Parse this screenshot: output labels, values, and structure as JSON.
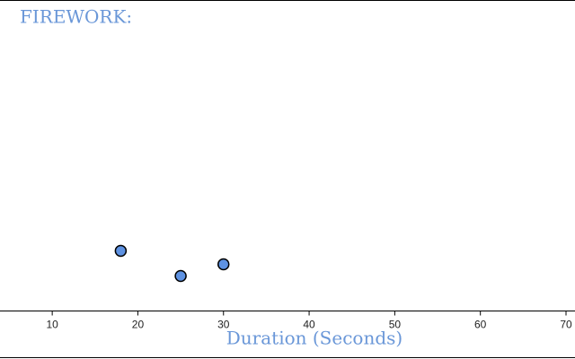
{
  "chart_data": {
    "type": "scatter",
    "title": "FIREWORK:",
    "x_label": "Duration (Seconds)",
    "x": [
      18,
      25,
      30
    ],
    "color": "#5e92e2",
    "xlim": [
      3.9,
      71.05
    ],
    "xticks": [
      10,
      20,
      30,
      40,
      50,
      60,
      70
    ]
  }
}
